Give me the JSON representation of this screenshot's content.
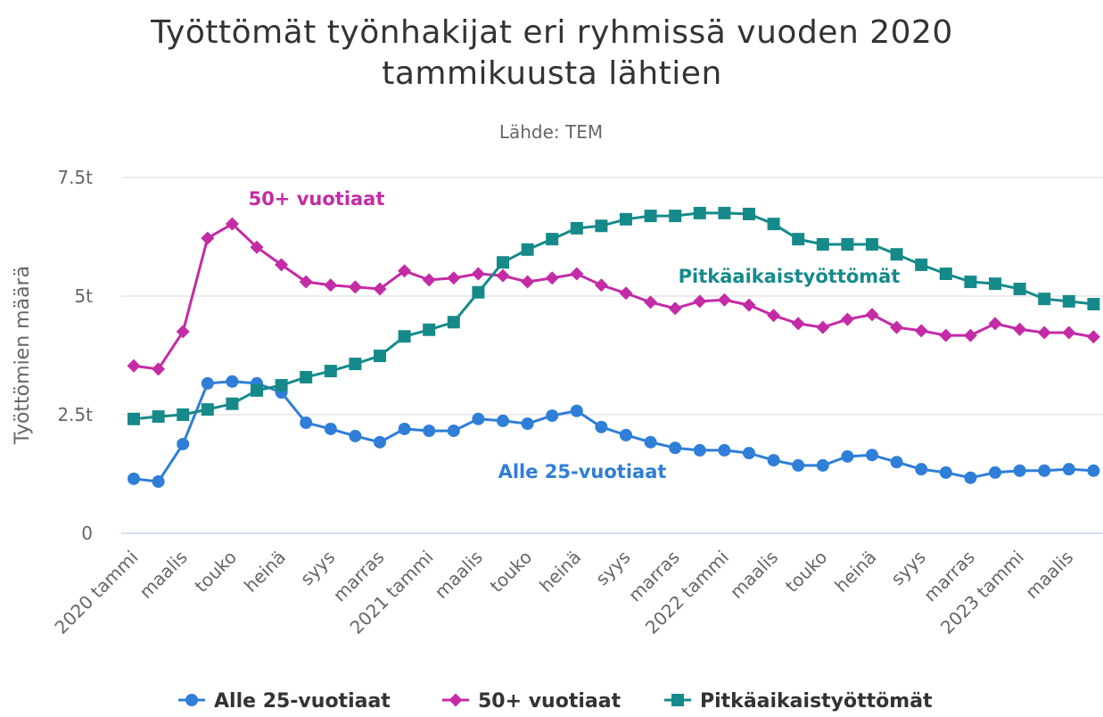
{
  "chart_data": {
    "type": "line",
    "title": "Työttömät työnhakijat eri ryhmissä vuoden 2020 tammikuusta lähtien",
    "subtitle": "Lähde: TEM",
    "y_label": "Työttömien määrä",
    "categories": [
      "2020 tammi",
      null,
      "maalis",
      null,
      "touko",
      null,
      "heinä",
      null,
      "syys",
      null,
      "marras",
      null,
      "2021 tammi",
      null,
      "maalis",
      null,
      "touko",
      null,
      "heinä",
      null,
      "syys",
      null,
      "marras",
      null,
      "2022 tammi",
      null,
      "maalis",
      null,
      "touko",
      null,
      "heinä",
      null,
      "syys",
      null,
      "marras",
      null,
      "2023 tammi",
      null,
      "maalis",
      null
    ],
    "ylim": [
      0,
      7.5
    ],
    "yticks": [
      0,
      {
        "value": 2.5,
        "label": "2.5t"
      },
      {
        "value": 5,
        "label": "5t"
      },
      {
        "value": 7.5,
        "label": "7.5t"
      }
    ],
    "grid": true,
    "legend": "bottom",
    "series": [
      {
        "name": "Alle 25-vuotiaat",
        "color": "#2f7ed8",
        "marker": "circle",
        "values": [
          1.15,
          1.09,
          1.88,
          3.16,
          3.2,
          3.16,
          2.97,
          2.33,
          2.2,
          2.05,
          1.92,
          2.2,
          2.16,
          2.16,
          2.41,
          2.37,
          2.31,
          2.48,
          2.58,
          2.24,
          2.07,
          1.92,
          1.8,
          1.75,
          1.75,
          1.69,
          1.54,
          1.43,
          1.43,
          1.62,
          1.65,
          1.5,
          1.35,
          1.28,
          1.17,
          1.28,
          1.32,
          1.32,
          1.35,
          1.32
        ]
      },
      {
        "name": "50+ vuotiaat",
        "color": "#c42ba6",
        "marker": "diamond",
        "values": [
          3.53,
          3.46,
          4.25,
          6.22,
          6.52,
          6.03,
          5.66,
          5.3,
          5.23,
          5.19,
          5.15,
          5.53,
          5.34,
          5.38,
          5.47,
          5.43,
          5.3,
          5.38,
          5.47,
          5.23,
          5.06,
          4.87,
          4.74,
          4.89,
          4.92,
          4.81,
          4.59,
          4.42,
          4.34,
          4.51,
          4.61,
          4.34,
          4.27,
          4.17,
          4.17,
          4.42,
          4.3,
          4.23,
          4.23,
          4.14
        ]
      },
      {
        "name": "Pitkäaikaistyöttömät",
        "color": "#168a8a",
        "marker": "square",
        "values": [
          2.41,
          2.46,
          2.5,
          2.61,
          2.73,
          3.01,
          3.12,
          3.29,
          3.42,
          3.57,
          3.74,
          4.15,
          4.29,
          4.45,
          5.08,
          5.71,
          5.98,
          6.2,
          6.43,
          6.48,
          6.62,
          6.69,
          6.69,
          6.75,
          6.75,
          6.73,
          6.52,
          6.2,
          6.09,
          6.09,
          6.09,
          5.88,
          5.66,
          5.47,
          5.3,
          5.26,
          5.15,
          4.94,
          4.89,
          4.83
        ]
      }
    ]
  }
}
